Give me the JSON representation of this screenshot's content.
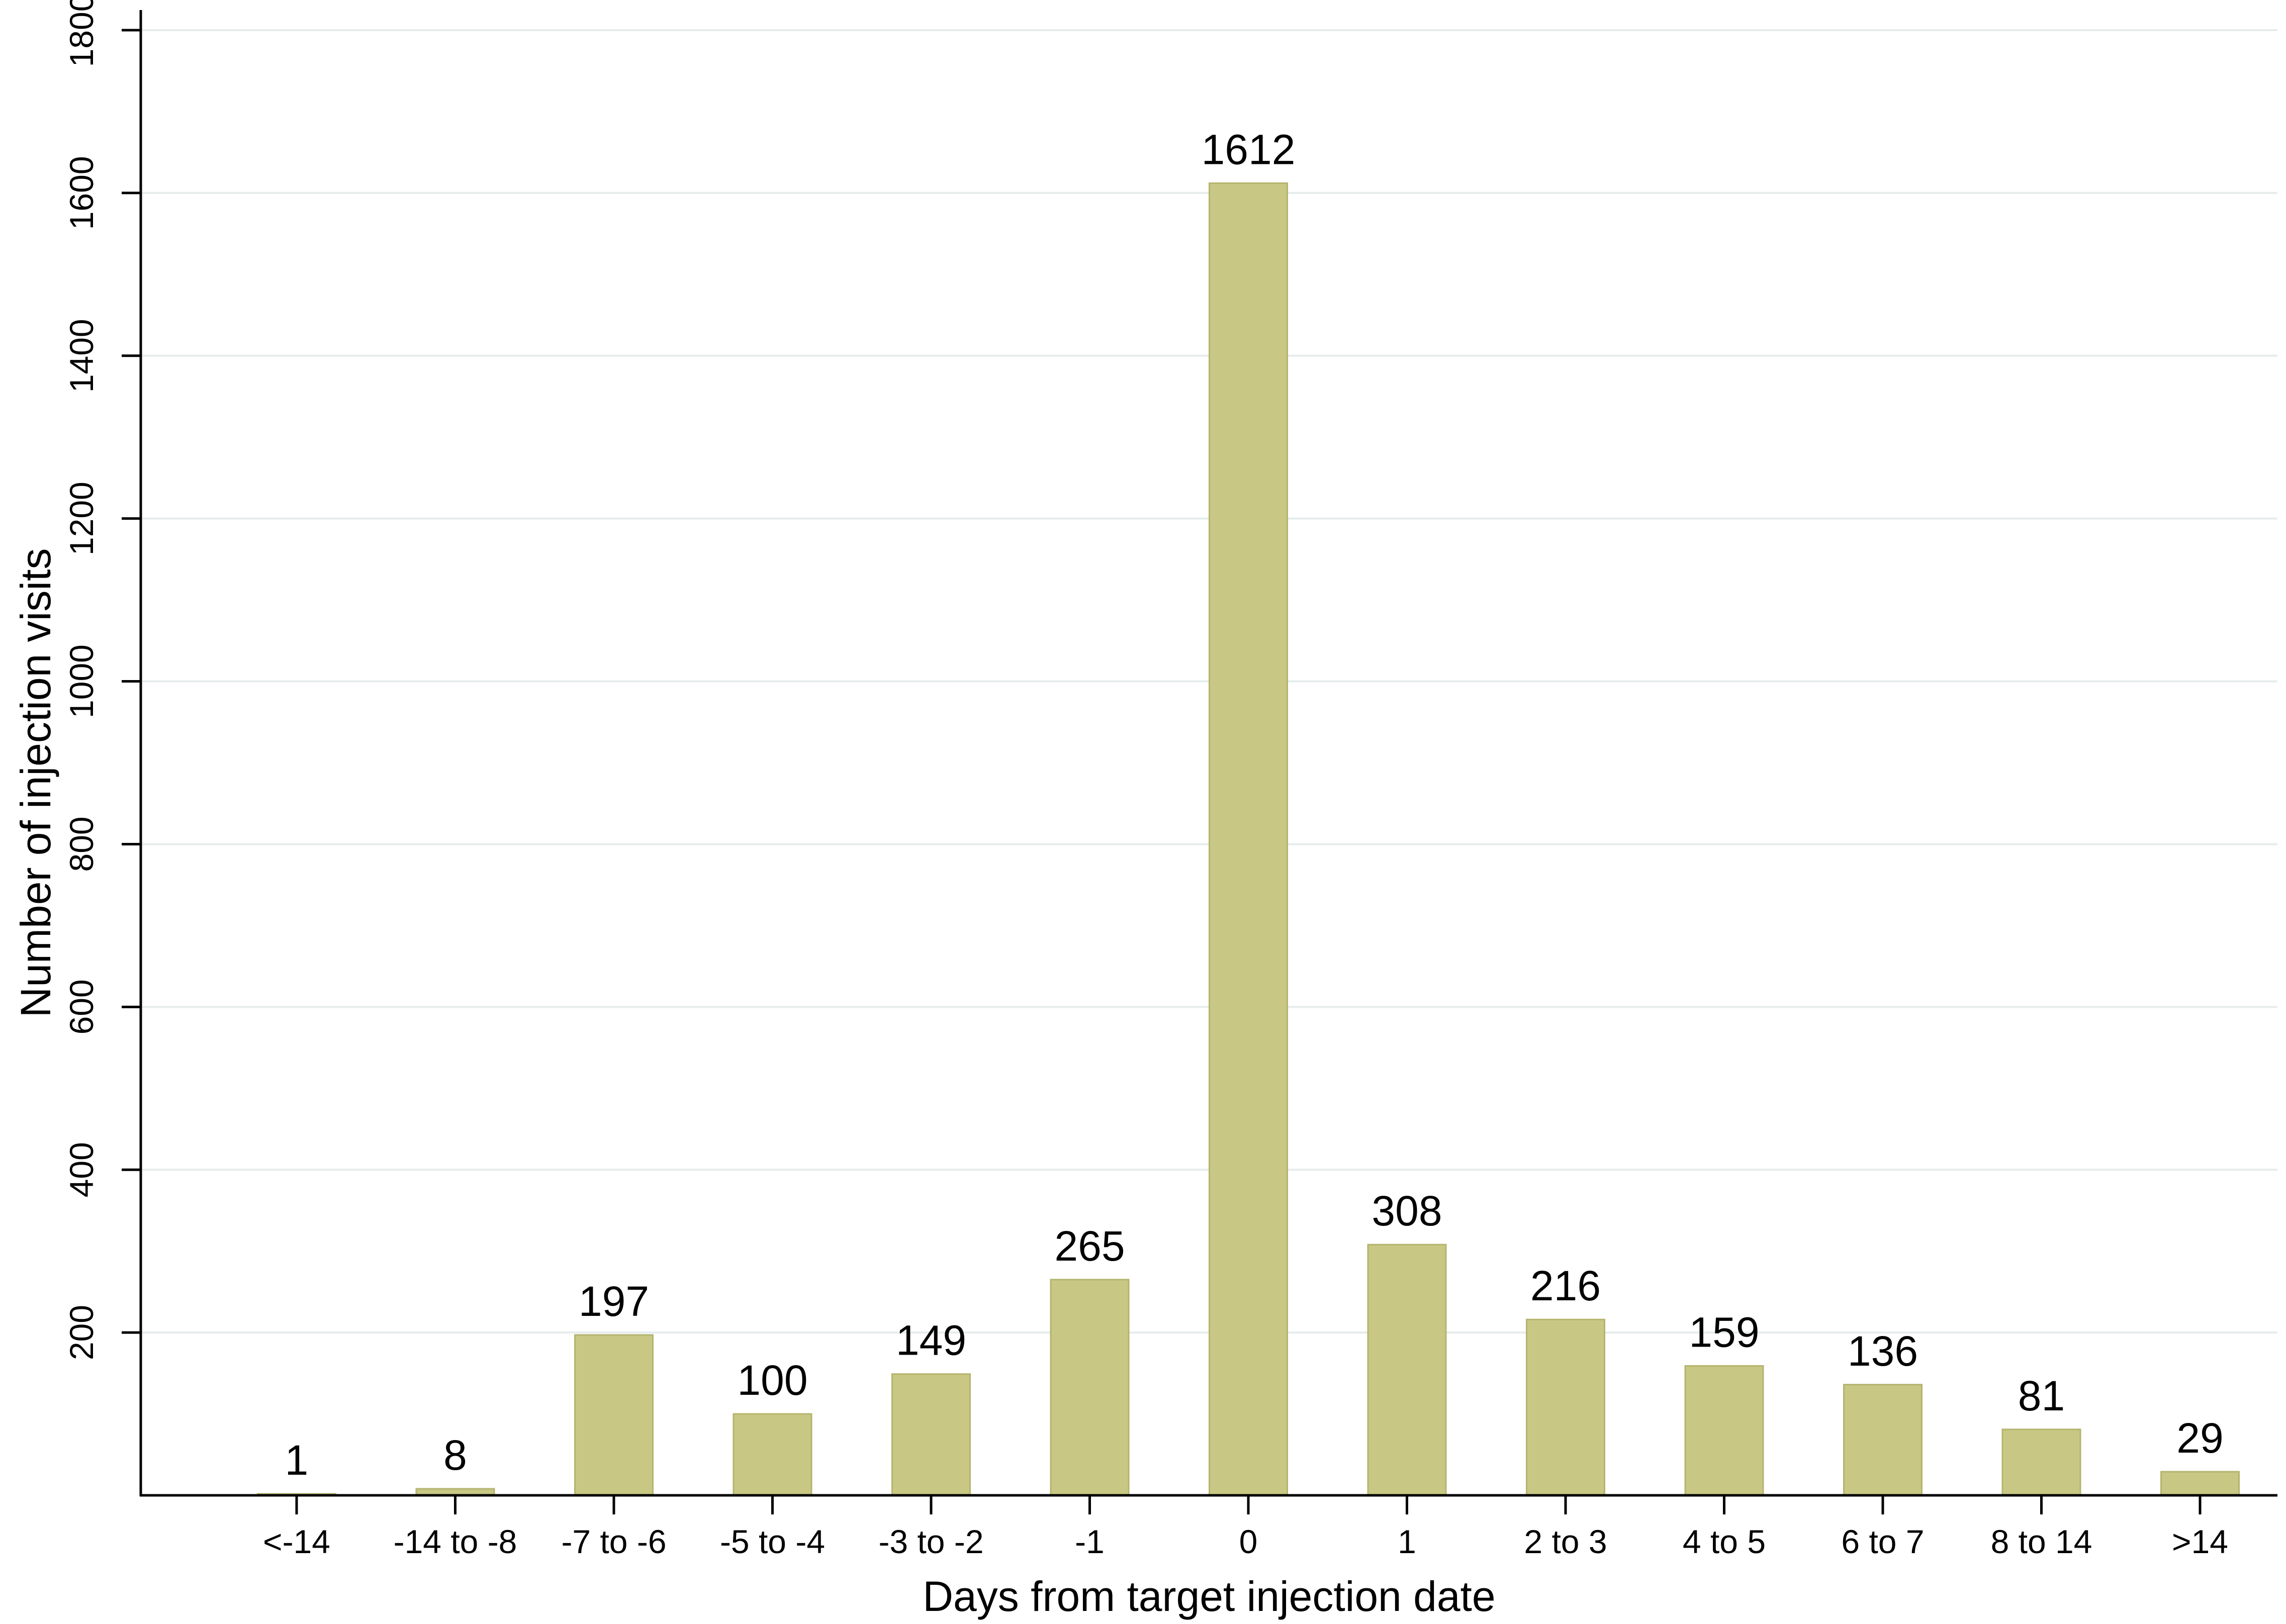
{
  "chart_data": {
    "type": "bar",
    "xlabel": "Days from target injection date",
    "ylabel": "Number of injection visits",
    "categories": [
      "<-14",
      "-14 to -8",
      "-7 to -6",
      "-5 to -4",
      "-3 to -2",
      "-1",
      "0",
      "1",
      "2 to 3",
      "4 to 5",
      "6 to 7",
      "8 to 14",
      ">14"
    ],
    "values": [
      1,
      8,
      197,
      100,
      149,
      265,
      1612,
      308,
      216,
      159,
      136,
      81,
      29
    ],
    "data_labels": [
      "1",
      "8",
      "197",
      "100",
      "149",
      "265",
      "1612",
      "308",
      "216",
      "159",
      "136",
      "81",
      "29"
    ],
    "ylim": [
      0,
      1800
    ],
    "yticks": [
      200,
      400,
      600,
      800,
      1000,
      1200,
      1400,
      1600,
      1800
    ],
    "ytick_labels": [
      "200",
      "400",
      "600",
      "800",
      "1000",
      "1200",
      "1400",
      "1600",
      "1800"
    ],
    "grid": true,
    "colors": {
      "bar": "#c8c884",
      "bar_edge": "#b4b46e",
      "grid": "#e6ecec",
      "axis": "#000000"
    }
  }
}
